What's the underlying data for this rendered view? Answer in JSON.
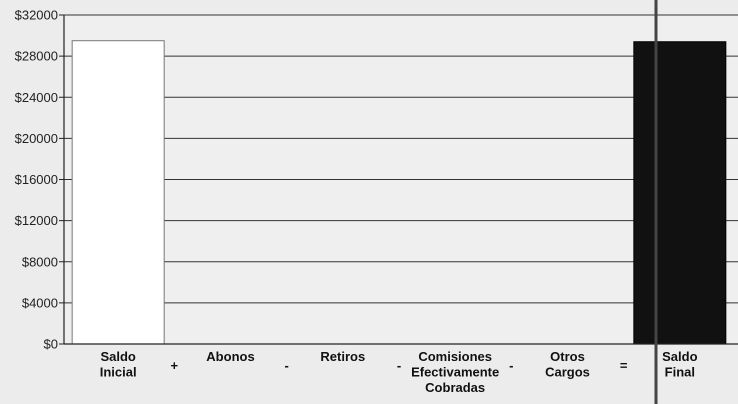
{
  "chart_data": {
    "type": "bar",
    "title": "",
    "xlabel": "",
    "ylabel": "",
    "ylim": [
      0,
      32000
    ],
    "y_ticks": [
      "$0",
      "$4000",
      "$8000",
      "$12000",
      "$16000",
      "$20000",
      "$24000",
      "$28000",
      "$32000"
    ],
    "y_tick_values": [
      0,
      4000,
      8000,
      12000,
      16000,
      20000,
      24000,
      28000,
      32000
    ],
    "grid": true,
    "categories": [
      {
        "lines": [
          "Saldo",
          "Inicial"
        ]
      },
      {
        "lines": [
          "Abonos"
        ]
      },
      {
        "lines": [
          "Retiros"
        ]
      },
      {
        "lines": [
          "Comisiones",
          "Efectivamente",
          "Cobradas"
        ]
      },
      {
        "lines": [
          "Otros",
          "Cargos"
        ]
      },
      {
        "lines": [
          "Saldo",
          "Final"
        ]
      }
    ],
    "operators": [
      "+",
      "-",
      "-",
      "-",
      "="
    ],
    "values": [
      29500,
      0,
      0,
      0,
      0,
      29400
    ],
    "bar_colors": [
      "#ffffff",
      "#ffffff",
      "#ffffff",
      "#ffffff",
      "#ffffff",
      "#111111"
    ]
  }
}
